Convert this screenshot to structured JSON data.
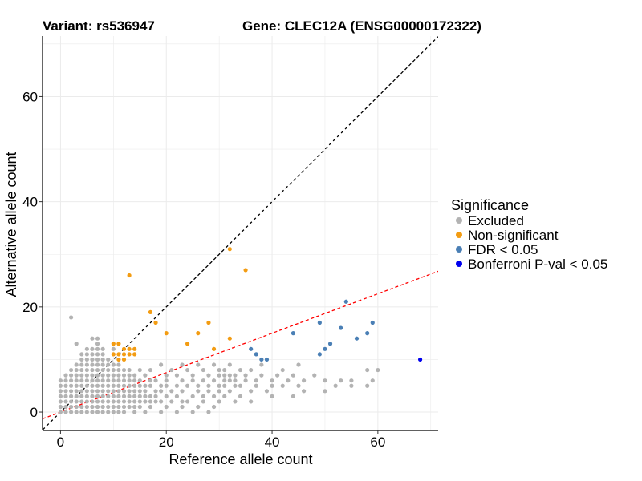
{
  "chart_data": {
    "type": "scatter",
    "title_left": "Variant: rs536947",
    "title_right": "Gene: CLEC12A (ENSG00000172322)",
    "xlabel": "Reference allele count",
    "ylabel": "Alternative allele count",
    "xlim": [
      -3.4,
      71.4
    ],
    "ylim": [
      -3.5,
      71.5
    ],
    "x_ticks": [
      0,
      20,
      40,
      60
    ],
    "y_ticks": [
      0,
      20,
      40,
      60
    ],
    "grid": true,
    "legend": {
      "title": "Significance",
      "placement": "right",
      "entries": [
        {
          "label": "Excluded",
          "color": "#b3b3b3"
        },
        {
          "label": "Non-significant",
          "color": "#f39c12"
        },
        {
          "label": "FDR < 0.05",
          "color": "#4a7fb5"
        },
        {
          "label": "Bonferroni P-val < 0.05",
          "color": "#0000ee"
        }
      ]
    },
    "reference_lines": [
      {
        "name": "diagonal",
        "slope": 1.0,
        "intercept": 0,
        "color": "#000000",
        "dash": true
      },
      {
        "name": "fit",
        "slope": 0.375,
        "intercept": 0,
        "color": "#ff0000",
        "dash": true
      }
    ],
    "series": [
      {
        "name": "Excluded",
        "color": "#b3b3b3",
        "points": [
          [
            2,
            18
          ],
          [
            7,
            14
          ],
          [
            6,
            14
          ],
          [
            8,
            12
          ],
          [
            10,
            12
          ],
          [
            3,
            13
          ],
          [
            4,
            11
          ],
          [
            5,
            12
          ],
          [
            0,
            0
          ],
          [
            0,
            1
          ],
          [
            0,
            2
          ],
          [
            0,
            3
          ],
          [
            0,
            4
          ],
          [
            0,
            5
          ],
          [
            0,
            6
          ],
          [
            1,
            0
          ],
          [
            1,
            1
          ],
          [
            1,
            2
          ],
          [
            1,
            3
          ],
          [
            1,
            4
          ],
          [
            1,
            5
          ],
          [
            1,
            6
          ],
          [
            1,
            7
          ],
          [
            2,
            0
          ],
          [
            2,
            1
          ],
          [
            2,
            2
          ],
          [
            2,
            3
          ],
          [
            2,
            4
          ],
          [
            2,
            5
          ],
          [
            2,
            6
          ],
          [
            2,
            7
          ],
          [
            2,
            8
          ],
          [
            3,
            0
          ],
          [
            3,
            1
          ],
          [
            3,
            2
          ],
          [
            3,
            3
          ],
          [
            3,
            4
          ],
          [
            3,
            5
          ],
          [
            3,
            6
          ],
          [
            3,
            7
          ],
          [
            3,
            8
          ],
          [
            3,
            9
          ],
          [
            4,
            0
          ],
          [
            4,
            1
          ],
          [
            4,
            2
          ],
          [
            4,
            3
          ],
          [
            4,
            4
          ],
          [
            4,
            5
          ],
          [
            4,
            6
          ],
          [
            4,
            7
          ],
          [
            4,
            8
          ],
          [
            4,
            9
          ],
          [
            4,
            10
          ],
          [
            5,
            0
          ],
          [
            5,
            1
          ],
          [
            5,
            2
          ],
          [
            5,
            3
          ],
          [
            5,
            4
          ],
          [
            5,
            5
          ],
          [
            5,
            6
          ],
          [
            5,
            7
          ],
          [
            5,
            8
          ],
          [
            5,
            9
          ],
          [
            5,
            10
          ],
          [
            5,
            11
          ],
          [
            6,
            0
          ],
          [
            6,
            1
          ],
          [
            6,
            2
          ],
          [
            6,
            3
          ],
          [
            6,
            4
          ],
          [
            6,
            5
          ],
          [
            6,
            6
          ],
          [
            6,
            7
          ],
          [
            6,
            8
          ],
          [
            6,
            9
          ],
          [
            6,
            10
          ],
          [
            6,
            11
          ],
          [
            6,
            12
          ],
          [
            7,
            0
          ],
          [
            7,
            1
          ],
          [
            7,
            2
          ],
          [
            7,
            3
          ],
          [
            7,
            4
          ],
          [
            7,
            5
          ],
          [
            7,
            6
          ],
          [
            7,
            7
          ],
          [
            7,
            8
          ],
          [
            7,
            9
          ],
          [
            7,
            10
          ],
          [
            7,
            11
          ],
          [
            7,
            12
          ],
          [
            7,
            13
          ],
          [
            8,
            0
          ],
          [
            8,
            1
          ],
          [
            8,
            2
          ],
          [
            8,
            3
          ],
          [
            8,
            4
          ],
          [
            8,
            5
          ],
          [
            8,
            6
          ],
          [
            8,
            7
          ],
          [
            8,
            8
          ],
          [
            8,
            9
          ],
          [
            8,
            10
          ],
          [
            8,
            11
          ],
          [
            9,
            0
          ],
          [
            9,
            1
          ],
          [
            9,
            2
          ],
          [
            9,
            3
          ],
          [
            9,
            4
          ],
          [
            9,
            5
          ],
          [
            9,
            6
          ],
          [
            9,
            7
          ],
          [
            9,
            8
          ],
          [
            9,
            9
          ],
          [
            9,
            10
          ],
          [
            10,
            0
          ],
          [
            10,
            1
          ],
          [
            10,
            2
          ],
          [
            10,
            3
          ],
          [
            10,
            4
          ],
          [
            10,
            5
          ],
          [
            10,
            6
          ],
          [
            10,
            7
          ],
          [
            10,
            8
          ],
          [
            10,
            9
          ],
          [
            11,
            0
          ],
          [
            11,
            1
          ],
          [
            11,
            2
          ],
          [
            11,
            3
          ],
          [
            11,
            4
          ],
          [
            11,
            5
          ],
          [
            11,
            6
          ],
          [
            11,
            7
          ],
          [
            11,
            8
          ],
          [
            11,
            9
          ],
          [
            12,
            0
          ],
          [
            12,
            1
          ],
          [
            12,
            2
          ],
          [
            12,
            3
          ],
          [
            12,
            4
          ],
          [
            12,
            5
          ],
          [
            12,
            6
          ],
          [
            12,
            7
          ],
          [
            12,
            8
          ],
          [
            13,
            1
          ],
          [
            13,
            2
          ],
          [
            13,
            3
          ],
          [
            13,
            4
          ],
          [
            13,
            5
          ],
          [
            13,
            6
          ],
          [
            13,
            7
          ],
          [
            13,
            8
          ],
          [
            14,
            0
          ],
          [
            14,
            1
          ],
          [
            14,
            2
          ],
          [
            14,
            3
          ],
          [
            14,
            4
          ],
          [
            14,
            5
          ],
          [
            14,
            6
          ],
          [
            14,
            7
          ],
          [
            15,
            1
          ],
          [
            15,
            2
          ],
          [
            15,
            3
          ],
          [
            15,
            4
          ],
          [
            15,
            5
          ],
          [
            15,
            6
          ],
          [
            15,
            8
          ],
          [
            16,
            0
          ],
          [
            16,
            2
          ],
          [
            16,
            3
          ],
          [
            16,
            4
          ],
          [
            16,
            5
          ],
          [
            16,
            7
          ],
          [
            17,
            1
          ],
          [
            17,
            2
          ],
          [
            17,
            3
          ],
          [
            17,
            5
          ],
          [
            17,
            6
          ],
          [
            17,
            8
          ],
          [
            18,
            2
          ],
          [
            18,
            3
          ],
          [
            18,
            4
          ],
          [
            18,
            6
          ],
          [
            19,
            0
          ],
          [
            19,
            2
          ],
          [
            19,
            4
          ],
          [
            19,
            5
          ],
          [
            19,
            9
          ],
          [
            20,
            1
          ],
          [
            20,
            3
          ],
          [
            20,
            5
          ],
          [
            20,
            6
          ],
          [
            20,
            7
          ],
          [
            21,
            2
          ],
          [
            21,
            4
          ],
          [
            21,
            8
          ],
          [
            22,
            0
          ],
          [
            22,
            3
          ],
          [
            22,
            5
          ],
          [
            22,
            7
          ],
          [
            23,
            1
          ],
          [
            23,
            2
          ],
          [
            23,
            4
          ],
          [
            23,
            6
          ],
          [
            23,
            9
          ],
          [
            24,
            2
          ],
          [
            24,
            5
          ],
          [
            24,
            8
          ],
          [
            25,
            0
          ],
          [
            25,
            3
          ],
          [
            25,
            6
          ],
          [
            25,
            7
          ],
          [
            26,
            1
          ],
          [
            26,
            4
          ],
          [
            26,
            5
          ],
          [
            26,
            9
          ],
          [
            27,
            2
          ],
          [
            27,
            3
          ],
          [
            27,
            6
          ],
          [
            27,
            8
          ],
          [
            28,
            0
          ],
          [
            28,
            4
          ],
          [
            28,
            5
          ],
          [
            28,
            7
          ],
          [
            29,
            1
          ],
          [
            29,
            3
          ],
          [
            29,
            6
          ],
          [
            29,
            9
          ],
          [
            30,
            2
          ],
          [
            30,
            4
          ],
          [
            30,
            5
          ],
          [
            30,
            7
          ],
          [
            30,
            8
          ],
          [
            31,
            3
          ],
          [
            31,
            5
          ],
          [
            31,
            6
          ],
          [
            31,
            7
          ],
          [
            31,
            8
          ],
          [
            32,
            4
          ],
          [
            32,
            6
          ],
          [
            32,
            7
          ],
          [
            32,
            9
          ],
          [
            33,
            2
          ],
          [
            33,
            5
          ],
          [
            33,
            6
          ],
          [
            33,
            7
          ],
          [
            34,
            3
          ],
          [
            34,
            5
          ],
          [
            34,
            8
          ],
          [
            35,
            6
          ],
          [
            35,
            7
          ],
          [
            36,
            2
          ],
          [
            36,
            4
          ],
          [
            36,
            8
          ],
          [
            37,
            5
          ],
          [
            37,
            6
          ],
          [
            38,
            7
          ],
          [
            38,
            9
          ],
          [
            39,
            4
          ],
          [
            40,
            3
          ],
          [
            40,
            5
          ],
          [
            40,
            6
          ],
          [
            41,
            7
          ],
          [
            42,
            5
          ],
          [
            42,
            8
          ],
          [
            43,
            6
          ],
          [
            44,
            3
          ],
          [
            44,
            7
          ],
          [
            45,
            5
          ],
          [
            45,
            9
          ],
          [
            46,
            4
          ],
          [
            46,
            6
          ],
          [
            48,
            7
          ],
          [
            50,
            6
          ],
          [
            50,
            4
          ],
          [
            52,
            5
          ],
          [
            53,
            6
          ],
          [
            55,
            6
          ],
          [
            55,
            5
          ],
          [
            58,
            5
          ],
          [
            58,
            8
          ],
          [
            59,
            6
          ],
          [
            60,
            8
          ]
        ]
      },
      {
        "name": "Non-significant",
        "color": "#f39c12",
        "points": [
          [
            32,
            31
          ],
          [
            13,
            26
          ],
          [
            35,
            27
          ],
          [
            17,
            19
          ],
          [
            18,
            17
          ],
          [
            20,
            15
          ],
          [
            24,
            13
          ],
          [
            26,
            15
          ],
          [
            28,
            17
          ],
          [
            29,
            12
          ],
          [
            32,
            14
          ],
          [
            10,
            13
          ],
          [
            11,
            13
          ],
          [
            10,
            11
          ],
          [
            11,
            11
          ],
          [
            12,
            10
          ],
          [
            12,
            12
          ],
          [
            13,
            12
          ],
          [
            14,
            12
          ],
          [
            13,
            11
          ],
          [
            14,
            11
          ],
          [
            11,
            10
          ],
          [
            12,
            11
          ]
        ]
      },
      {
        "name": "FDR < 0.05",
        "color": "#4a7fb5",
        "points": [
          [
            36,
            12
          ],
          [
            37,
            11
          ],
          [
            38,
            10
          ],
          [
            39,
            10
          ],
          [
            44,
            15
          ],
          [
            49,
            11
          ],
          [
            49,
            17
          ],
          [
            50,
            12
          ],
          [
            51,
            13
          ],
          [
            53,
            16
          ],
          [
            54,
            21
          ],
          [
            56,
            14
          ],
          [
            58,
            15
          ],
          [
            59,
            17
          ]
        ]
      },
      {
        "name": "Bonferroni P-val < 0.05",
        "color": "#0000ee",
        "points": [
          [
            68,
            10
          ]
        ]
      }
    ]
  }
}
